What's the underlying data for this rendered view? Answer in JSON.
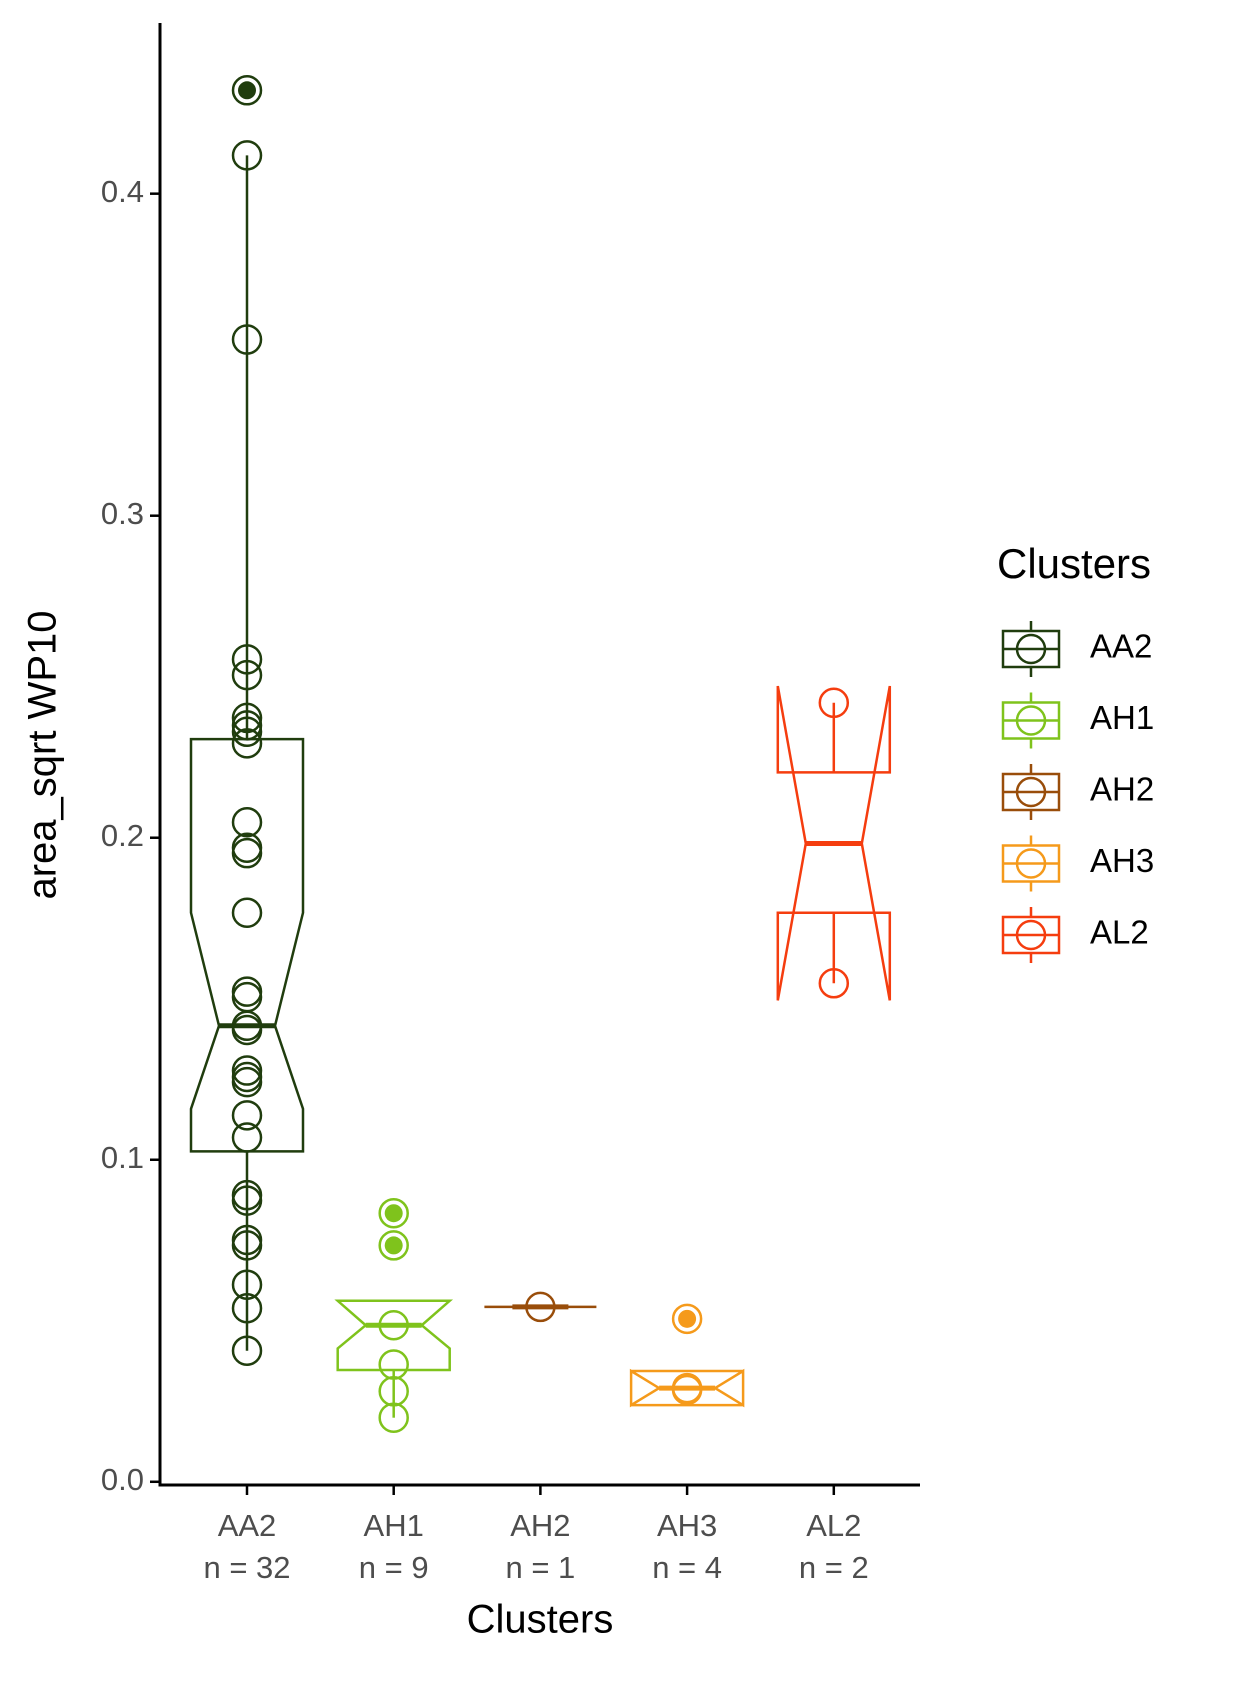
{
  "chart_data": {
    "type": "boxplot",
    "y_label": "area_sqrt WP10",
    "x_label": "Clusters",
    "legend_title": "Clusters",
    "legend_position": "right",
    "notched": true,
    "categories": [
      "AA2",
      "AH1",
      "AH2",
      "AH3",
      "AL2"
    ],
    "count_labels": [
      "n = 32",
      "n = 9",
      "n = 1",
      "n = 4",
      "n = 2"
    ],
    "ylim": [
      -0.001,
      0.453
    ],
    "yticks": [
      {
        "value": 0,
        "label": "0.0"
      },
      0.1,
      0.2,
      0.3,
      0.4
    ],
    "series": [
      {
        "name": "AA2",
        "color": "#203d0e",
        "whisker_low": 0.0407,
        "q1": 0.1026,
        "median": 0.1416,
        "q3": 0.2306,
        "whisker_high": 0.4119,
        "notch_low": 0.1158,
        "notch_high": 0.1767,
        "points": [
          0.4321,
          0.4119,
          0.3547,
          0.2554,
          0.2505,
          0.2372,
          0.2349,
          0.2329,
          0.2293,
          0.2048,
          0.1969,
          0.1952,
          0.1767,
          0.1522,
          0.1505,
          0.1416,
          0.1403,
          0.1277,
          0.1257,
          0.1241,
          0.1138,
          0.1069,
          0.089,
          0.0873,
          0.0751,
          0.0734,
          0.0612,
          0.0539,
          0.0407
        ],
        "outliers": [
          0.4321
        ]
      },
      {
        "name": "AH1",
        "color": "#7fc31c",
        "whisker_low": 0.0199,
        "q1": 0.0347,
        "median": 0.0486,
        "q3": 0.0562,
        "whisker_high": 0.0562,
        "notch_low": 0.0414,
        "notch_high": 0.0562,
        "points": [
          0.0834,
          0.0734,
          0.0486,
          0.0364,
          0.0281,
          0.0199
        ],
        "outliers": [
          0.0834,
          0.0734
        ]
      },
      {
        "name": "AH2",
        "color": "#994d0a",
        "whisker_low": 0.0543,
        "q1": 0.0543,
        "median": 0.0543,
        "q3": 0.0543,
        "whisker_high": 0.0543,
        "notch_low": 0.0543,
        "notch_high": 0.0543,
        "points": [
          0.0543
        ],
        "outliers": []
      },
      {
        "name": "AH3",
        "color": "#f59a1b",
        "whisker_low": 0.0238,
        "q1": 0.0238,
        "median": 0.0291,
        "q3": 0.0344,
        "whisker_high": 0.0344,
        "notch_low": 0.0344,
        "notch_high": 0.0238,
        "points": [
          0.0506,
          0.0291,
          0.0285
        ],
        "outliers": [
          0.0506
        ]
      },
      {
        "name": "AL2",
        "color": "#f53d0f",
        "whisker_low": 0.1548,
        "q1": 0.1767,
        "median": 0.1982,
        "q3": 0.2203,
        "whisker_high": 0.2419,
        "notch_low": 0.1495,
        "notch_high": 0.2471,
        "points": [
          0.2419,
          0.1548
        ],
        "outliers": []
      }
    ]
  }
}
